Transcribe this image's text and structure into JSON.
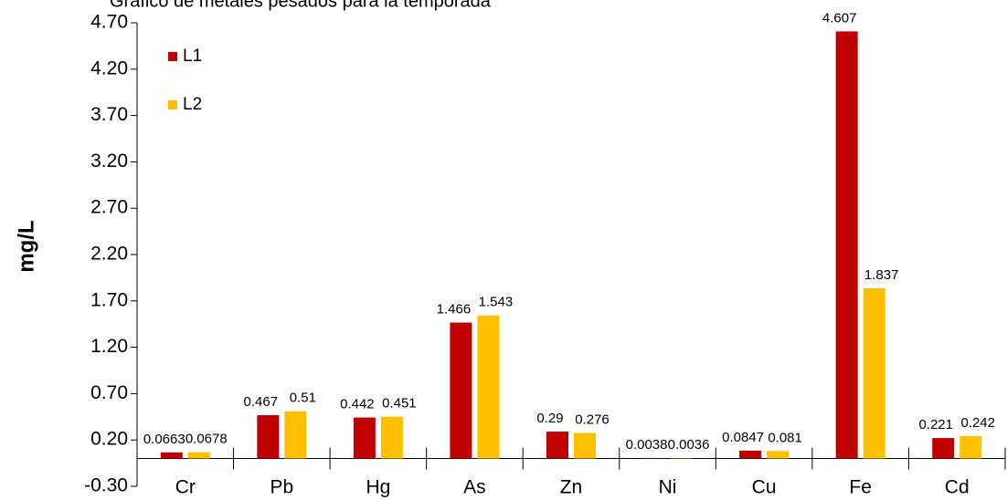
{
  "chart_data": {
    "type": "bar",
    "title": "Gráfico de metales pesados para la temporada",
    "ylabel": "mg/L",
    "categories": [
      "Cr",
      "Pb",
      "Hg",
      "As",
      "Zn",
      "Ni",
      "Cu",
      "Fe",
      "Cd"
    ],
    "series": [
      {
        "name": "L1",
        "color": "#c00000",
        "values": [
          0.0663,
          0.467,
          0.442,
          1.466,
          0.29,
          0.0038,
          0.0847,
          4.607,
          0.221
        ]
      },
      {
        "name": "L2",
        "color": "#ffc000",
        "values": [
          0.0678,
          0.51,
          0.451,
          1.543,
          0.276,
          0.0036,
          0.081,
          1.837,
          0.242
        ]
      }
    ],
    "ylim": [
      -0.3,
      4.7
    ],
    "yticks": [
      {
        "value": -0.3,
        "label": "-0.30"
      },
      {
        "value": 0.2,
        "label": "0.20"
      },
      {
        "value": 0.7,
        "label": "0.70"
      },
      {
        "value": 1.2,
        "label": "1.20"
      },
      {
        "value": 1.7,
        "label": "1.70"
      },
      {
        "value": 2.2,
        "label": "2.20"
      },
      {
        "value": 2.7,
        "label": "2.70"
      },
      {
        "value": 3.2,
        "label": "3.20"
      },
      {
        "value": 3.7,
        "label": "3.70"
      },
      {
        "value": 4.2,
        "label": "4.20"
      },
      {
        "value": 4.7,
        "label": "4.70"
      }
    ],
    "legend": "top-left",
    "grid": false
  }
}
